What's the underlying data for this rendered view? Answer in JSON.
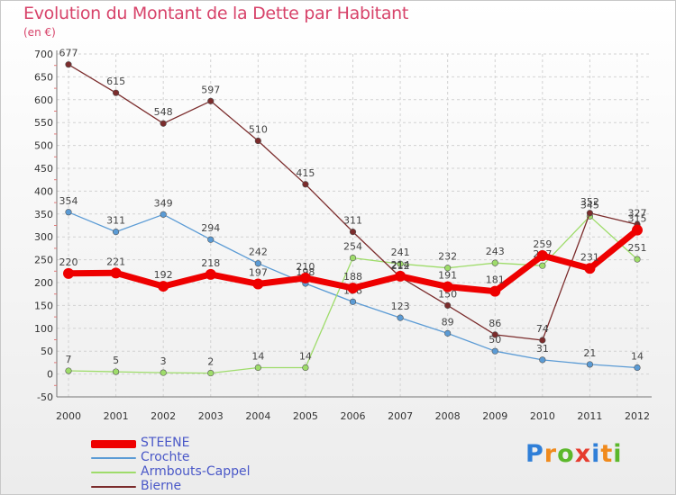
{
  "title": "Evolution du Montant de la Dette par Habitant",
  "unit_label": "(en €)",
  "brand": {
    "text": "Proxiti",
    "letter_colors": [
      "#2f7fd8",
      "#f08a1c",
      "#5cb82b",
      "#e63b2e",
      "#2f7fd8",
      "#f08a1c",
      "#5cb82b"
    ]
  },
  "chart_data": {
    "type": "line",
    "title": "Evolution du Montant de la Dette par Habitant",
    "ylabel": "(en €)",
    "xlabel": "",
    "x": [
      2000,
      2001,
      2002,
      2003,
      2004,
      2005,
      2006,
      2007,
      2008,
      2009,
      2010,
      2011,
      2012
    ],
    "x_tick_labels": [
      "2000",
      "2001",
      "2002",
      "2003",
      "2004",
      "2005",
      "2006",
      "2007",
      "2008",
      "2009",
      "2010",
      "2011",
      "2012"
    ],
    "ylim": [
      -50,
      700
    ],
    "y_ticks": [
      -50,
      0,
      50,
      100,
      150,
      200,
      250,
      300,
      350,
      400,
      450,
      500,
      550,
      600,
      650,
      700
    ],
    "grid": true,
    "legend_position": "bottom-left",
    "series": [
      {
        "name": "STEENE",
        "color": "#ee0000",
        "emphasis": true,
        "values": [
          220,
          221,
          192,
          218,
          197,
          210,
          188,
          214,
          191,
          181,
          259,
          231,
          315
        ],
        "labels": [
          "220",
          "221",
          "192",
          "218",
          "197",
          "210",
          "188",
          "214",
          "191",
          "181",
          "259",
          "231",
          "315"
        ]
      },
      {
        "name": "Crochte",
        "color": "#5b9bd5",
        "values": [
          354,
          311,
          349,
          294,
          242,
          198,
          158,
          123,
          89,
          50,
          31,
          21,
          14
        ],
        "labels": [
          "354",
          "311",
          "349",
          "294",
          "242",
          "198",
          "158",
          "123",
          "89",
          "50",
          "31",
          "21",
          "14"
        ]
      },
      {
        "name": "Armbouts-Cappel",
        "color": "#9edc6a",
        "values": [
          7,
          5,
          3,
          2,
          14,
          14,
          254,
          241,
          232,
          243,
          237,
          345,
          251
        ],
        "labels": [
          "7",
          "5",
          "3",
          "2",
          "14",
          "14",
          "254",
          "241",
          "232",
          "243",
          "237",
          "345",
          "251"
        ]
      },
      {
        "name": "Bierne",
        "color": "#7b2c2c",
        "values": [
          677,
          615,
          548,
          597,
          510,
          415,
          311,
          212,
          150,
          86,
          74,
          352,
          327
        ],
        "labels": [
          "677",
          "615",
          "548",
          "597",
          "510",
          "415",
          "311",
          "212",
          "150",
          "86",
          "74",
          "352",
          "327"
        ]
      }
    ]
  }
}
